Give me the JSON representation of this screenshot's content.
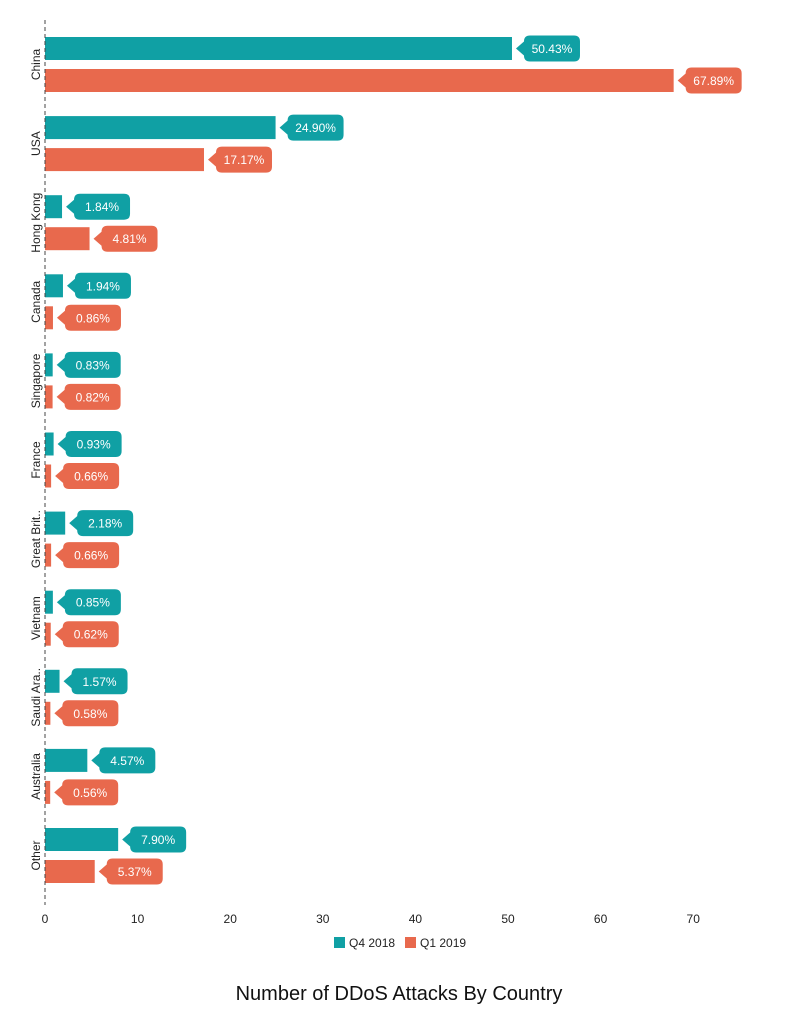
{
  "chart_data": {
    "type": "bar",
    "orientation": "horizontal",
    "title": "Number of DDoS Attacks By Country",
    "xlabel": "",
    "ylabel": "",
    "categories": [
      "China",
      "USA",
      "Hong Kong",
      "Canada",
      "Singapore",
      "France",
      "Great Brit..",
      "Vietnam",
      "Saudi Ara..",
      "Australia",
      "Other"
    ],
    "series": [
      {
        "name": "Q4 2018",
        "color": "#10a0a4",
        "values": [
          50.43,
          24.9,
          1.84,
          1.94,
          0.83,
          0.93,
          2.18,
          0.85,
          1.57,
          4.57,
          7.9
        ],
        "labels": [
          "50.43%",
          "24.90%",
          "1.84%",
          "1.94%",
          "0.83%",
          "0.93%",
          "2.18%",
          "0.85%",
          "1.57%",
          "4.57%",
          "7.90%"
        ]
      },
      {
        "name": "Q1 2019",
        "color": "#e8694d",
        "values": [
          67.89,
          17.17,
          4.81,
          0.86,
          0.82,
          0.66,
          0.66,
          0.62,
          0.58,
          0.56,
          5.37
        ],
        "labels": [
          "67.89%",
          "17.17%",
          "4.81%",
          "0.86%",
          "0.82%",
          "0.66%",
          "0.66%",
          "0.62%",
          "0.58%",
          "0.56%",
          "5.37%"
        ]
      }
    ],
    "xlim": [
      0,
      75
    ],
    "xticks": [
      "0",
      "10",
      "20",
      "30",
      "40",
      "50",
      "60",
      "70"
    ],
    "grid": false,
    "legend_position": "bottom"
  }
}
